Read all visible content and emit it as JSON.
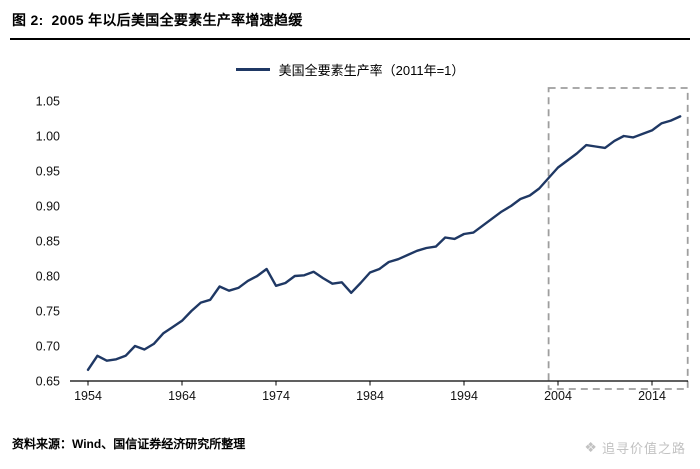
{
  "header": {
    "figure_label": "图 2:",
    "title": "2005 年以后美国全要素生产率增速趋缓"
  },
  "legend": {
    "label": "美国全要素生产率（2011年=1）"
  },
  "footer": {
    "source": "资料来源：Wind、国信证券经济研究所整理",
    "watermark": "追寻价值之路"
  },
  "colors": {
    "line": "#1f3864",
    "highlight_box": "#9e9e9e",
    "axis": "#000000",
    "watermark": "#c2c2c2"
  },
  "chart_data": {
    "type": "line",
    "title": "2005 年以后美国全要素生产率增速趋缓",
    "series_name": "美国全要素生产率（2011年=1）",
    "xlabel": "",
    "ylabel": "",
    "ylim": [
      0.65,
      1.05
    ],
    "y_ticks": [
      0.65,
      0.7,
      0.75,
      0.8,
      0.85,
      0.9,
      0.95,
      1.0,
      1.05
    ],
    "x_ticks": [
      1954,
      1964,
      1974,
      1984,
      1994,
      2004,
      2014
    ],
    "grid": false,
    "legend_position": "top-center",
    "years": [
      1954,
      1955,
      1956,
      1957,
      1958,
      1959,
      1960,
      1961,
      1962,
      1963,
      1964,
      1965,
      1966,
      1967,
      1968,
      1969,
      1970,
      1971,
      1972,
      1973,
      1974,
      1975,
      1976,
      1977,
      1978,
      1979,
      1980,
      1981,
      1982,
      1983,
      1984,
      1985,
      1986,
      1987,
      1988,
      1989,
      1990,
      1991,
      1992,
      1993,
      1994,
      1995,
      1996,
      1997,
      1998,
      1999,
      2000,
      2001,
      2002,
      2003,
      2004,
      2005,
      2006,
      2007,
      2008,
      2009,
      2010,
      2011,
      2012,
      2013,
      2014,
      2015,
      2016,
      2017
    ],
    "values": [
      0.666,
      0.686,
      0.679,
      0.681,
      0.686,
      0.7,
      0.695,
      0.703,
      0.718,
      0.727,
      0.736,
      0.75,
      0.762,
      0.766,
      0.785,
      0.779,
      0.783,
      0.793,
      0.8,
      0.81,
      0.786,
      0.79,
      0.8,
      0.801,
      0.806,
      0.797,
      0.789,
      0.791,
      0.776,
      0.79,
      0.805,
      0.81,
      0.82,
      0.824,
      0.83,
      0.836,
      0.84,
      0.842,
      0.855,
      0.853,
      0.86,
      0.862,
      0.872,
      0.882,
      0.892,
      0.9,
      0.91,
      0.915,
      0.925,
      0.94,
      0.955,
      0.965,
      0.975,
      0.987,
      0.985,
      0.983,
      0.993,
      1.0,
      0.998,
      1.003,
      1.008,
      1.018,
      1.022,
      1.028
    ],
    "highlight_box": {
      "x_from": 2003,
      "x_to": 2017.8
    }
  }
}
